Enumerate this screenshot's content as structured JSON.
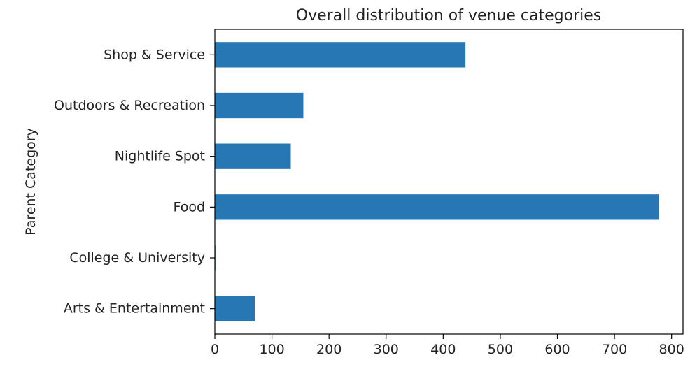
{
  "chart_data": {
    "type": "bar",
    "orientation": "horizontal",
    "title": "Overall distribution of venue categories",
    "xlabel": "",
    "ylabel": "Parent Category",
    "categories": [
      "Arts & Entertainment",
      "College & University",
      "Food",
      "Nightlife Spot",
      "Outdoors & Recreation",
      "Shop & Service"
    ],
    "values": [
      70,
      1,
      778,
      133,
      155,
      439
    ],
    "xlim": [
      0,
      820
    ],
    "xticks": [
      0,
      100,
      200,
      300,
      400,
      500,
      600,
      700,
      800
    ],
    "grid": false,
    "legend": "none",
    "bar_color": "#2677b4"
  }
}
